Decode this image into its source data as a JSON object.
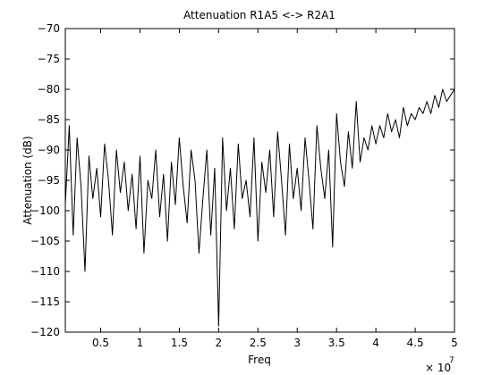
{
  "chart_data": {
    "type": "line",
    "title": "Attenuation R1A5 <-> R2A1",
    "xlabel": "Freq",
    "ylabel": "Attenuation (dB)",
    "x_multiplier_base": "× 10",
    "x_multiplier_exponent": "7",
    "xlim": [
      0.05,
      5
    ],
    "ylim": [
      -120,
      -70
    ],
    "xticks": [
      0.5,
      1,
      1.5,
      2,
      2.5,
      3,
      3.5,
      4,
      4.5,
      5
    ],
    "xtick_labels": [
      "0.5",
      "1",
      "1.5",
      "2",
      "2.5",
      "3",
      "3.5",
      "4",
      "4.5",
      "5"
    ],
    "yticks": [
      -120,
      -115,
      -110,
      -105,
      -100,
      -95,
      -90,
      -85,
      -80,
      -75,
      -70
    ],
    "ytick_labels": [
      "−120",
      "−115",
      "−110",
      "−105",
      "−100",
      "−95",
      "−90",
      "−85",
      "−80",
      "−75",
      "−70"
    ],
    "grid": false,
    "line_color": "#000000",
    "series": [
      {
        "x": [
          0.05,
          0.1,
          0.15,
          0.2,
          0.25,
          0.3,
          0.35,
          0.4,
          0.45,
          0.5,
          0.55,
          0.6,
          0.65,
          0.7,
          0.75,
          0.8,
          0.85,
          0.9,
          0.95,
          1.0,
          1.05,
          1.1,
          1.15,
          1.2,
          1.25,
          1.3,
          1.35,
          1.4,
          1.45,
          1.5,
          1.55,
          1.6,
          1.65,
          1.7,
          1.75,
          1.8,
          1.85,
          1.9,
          1.95,
          2.0,
          2.05,
          2.1,
          2.15,
          2.2,
          2.25,
          2.3,
          2.35,
          2.4,
          2.45,
          2.5,
          2.55,
          2.6,
          2.65,
          2.7,
          2.75,
          2.8,
          2.85,
          2.9,
          2.95,
          3.0,
          3.05,
          3.1,
          3.15,
          3.2,
          3.25,
          3.3,
          3.35,
          3.4,
          3.45,
          3.5,
          3.55,
          3.6,
          3.65,
          3.7,
          3.75,
          3.8,
          3.85,
          3.9,
          3.95,
          4.0,
          4.05,
          4.1,
          4.15,
          4.2,
          4.25,
          4.3,
          4.35,
          4.4,
          4.45,
          4.5,
          4.55,
          4.6,
          4.65,
          4.7,
          4.75,
          4.8,
          4.85,
          4.9,
          4.95,
          5.0
        ],
        "y": [
          -99,
          -86,
          -104,
          -88,
          -96,
          -110,
          -91,
          -98,
          -93,
          -101,
          -89,
          -95,
          -104,
          -90,
          -97,
          -92,
          -100,
          -94,
          -103,
          -91,
          -107,
          -95,
          -98,
          -90,
          -101,
          -94,
          -105,
          -92,
          -99,
          -88,
          -96,
          -102,
          -90,
          -95,
          -107,
          -98,
          -90,
          -104,
          -93,
          -119,
          -88,
          -100,
          -93,
          -103,
          -89,
          -98,
          -95,
          -101,
          -88,
          -105,
          -92,
          -97,
          -90,
          -101,
          -87,
          -95,
          -104,
          -89,
          -98,
          -93,
          -100,
          -88,
          -95,
          -103,
          -86,
          -93,
          -98,
          -90,
          -106,
          -84,
          -92,
          -96,
          -87,
          -93,
          -82,
          -92,
          -88,
          -90,
          -86,
          -89,
          -86,
          -88,
          -84,
          -87,
          -85,
          -88,
          -83,
          -86,
          -84,
          -85,
          -83,
          -84,
          -82,
          -84,
          -81,
          -83,
          -80,
          -82,
          -81,
          -80
        ]
      }
    ]
  }
}
